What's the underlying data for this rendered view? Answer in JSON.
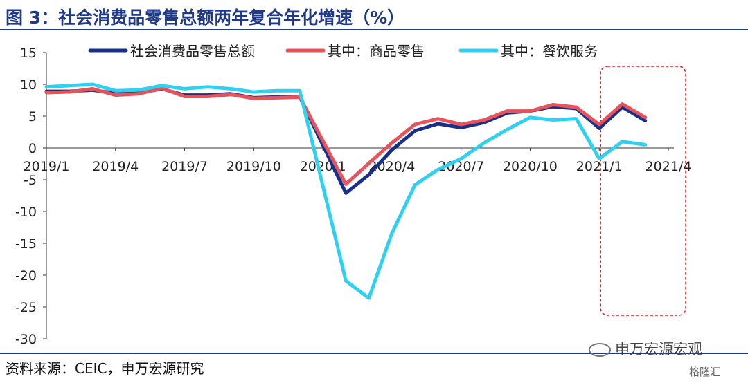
{
  "header": {
    "title": "图 3：社会消费品零售总额两年复合年化增速（%）"
  },
  "footer": {
    "source": "资料来源：CEIC，申万宏源研究"
  },
  "watermark": {
    "text": "申万宏源宏观",
    "sub": "格隆汇"
  },
  "chart_data": {
    "type": "line",
    "title": "图 3：社会消费品零售总额两年复合年化增速（%）",
    "xlabel": "",
    "ylabel": "",
    "ylim": [
      -30,
      15
    ],
    "yticks": [
      15,
      10,
      5,
      0,
      -5,
      -10,
      -15,
      -20,
      -25,
      -30
    ],
    "x": [
      "2019/1",
      "2019/2",
      "2019/3",
      "2019/4",
      "2019/5",
      "2019/6",
      "2019/7",
      "2019/8",
      "2019/9",
      "2019/10",
      "2019/11",
      "2019/12",
      "2020/1",
      "2020/2",
      "2020/3",
      "2020/4",
      "2020/5",
      "2020/6",
      "2020/7",
      "2020/8",
      "2020/9",
      "2020/10",
      "2020/11",
      "2020/12",
      "2021/1",
      "2021/2",
      "2021/3",
      "2021/4"
    ],
    "xtick_labels": [
      "2019/1",
      "2019/4",
      "2019/7",
      "2019/10",
      "2020/1",
      "2020/4",
      "2020/7",
      "2020/10",
      "2021/1",
      "2021/4"
    ],
    "legend_position": "top",
    "grid": false,
    "highlight": {
      "from": "2021/1",
      "to": "2021/4",
      "style": "red dashed box"
    },
    "series": [
      {
        "name": "社会消费品零售总额",
        "color": "#1a2f8c",
        "values": [
          8.9,
          8.9,
          9.1,
          8.6,
          8.6,
          9.3,
          8.3,
          8.3,
          8.5,
          7.9,
          8.0,
          8.0,
          null,
          -7.1,
          -4.2,
          -0.3,
          2.7,
          3.8,
          3.2,
          4.0,
          5.5,
          5.8,
          6.5,
          6.2,
          3.1,
          6.4,
          4.3,
          null
        ]
      },
      {
        "name": "其中：商品零售",
        "color": "#e8535a",
        "values": [
          8.7,
          8.8,
          9.3,
          8.3,
          8.5,
          9.4,
          8.1,
          8.1,
          8.4,
          7.8,
          7.9,
          8.0,
          null,
          -5.7,
          -2.4,
          0.8,
          3.7,
          4.6,
          3.7,
          4.4,
          5.8,
          5.8,
          6.8,
          6.4,
          3.7,
          6.9,
          4.8,
          null
        ]
      },
      {
        "name": "其中：餐饮服务",
        "color": "#2fd0f0",
        "values": [
          9.6,
          9.8,
          10.0,
          9.0,
          9.1,
          9.8,
          9.3,
          9.6,
          9.3,
          8.8,
          9.0,
          9.0,
          null,
          -20.9,
          -23.6,
          -13.4,
          -5.8,
          -3.4,
          -1.7,
          0.8,
          2.9,
          4.8,
          4.4,
          4.6,
          -1.7,
          1.0,
          0.5,
          null
        ]
      }
    ]
  }
}
